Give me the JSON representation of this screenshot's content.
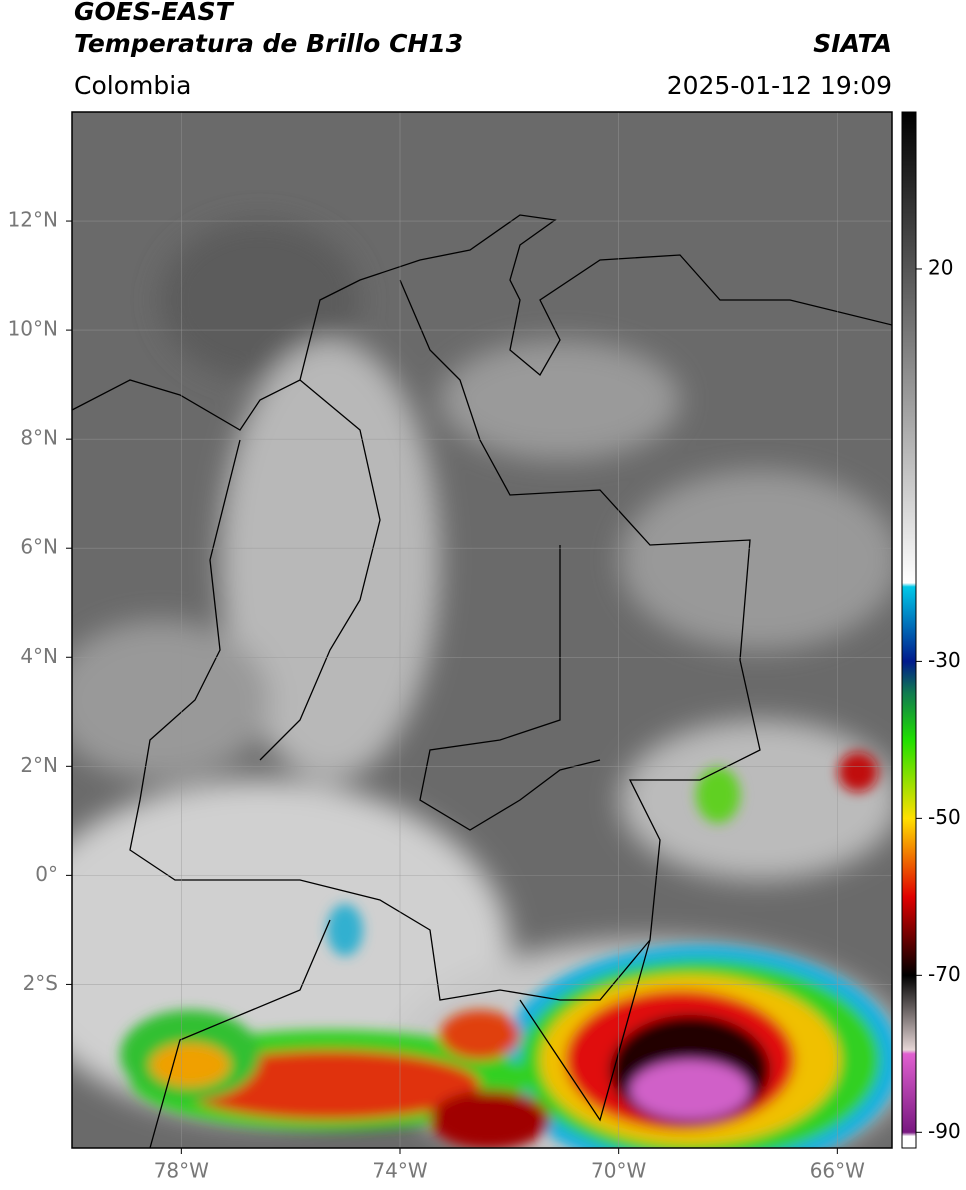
{
  "header": {
    "title": "GOES-EAST",
    "subtitle": "Temperatura de Brillo CH13",
    "source": "SIATA",
    "region": "Colombia",
    "datetime": "2025-01-12 19:09"
  },
  "map": {
    "lonlim": [
      -80,
      -65
    ],
    "latlim": [
      -5,
      14
    ],
    "lonticks": [
      {
        "value": -78,
        "label": "78°W"
      },
      {
        "value": -74,
        "label": "74°W"
      },
      {
        "value": -70,
        "label": "70°W"
      },
      {
        "value": -66,
        "label": "66°W"
      }
    ],
    "latticks": [
      {
        "value": 12,
        "label": "12°N"
      },
      {
        "value": 10,
        "label": "10°N"
      },
      {
        "value": 8,
        "label": "8°N"
      },
      {
        "value": 6,
        "label": "6°N"
      },
      {
        "value": 4,
        "label": "4°N"
      },
      {
        "value": 2,
        "label": "2°N"
      },
      {
        "value": 0,
        "label": "0°"
      },
      {
        "value": -2,
        "label": "2°S"
      }
    ],
    "grid": true
  },
  "colorbar": {
    "lim": [
      -92,
      40
    ],
    "ticks": [
      20,
      -30,
      -50,
      -70,
      -90
    ],
    "stops": [
      {
        "value": 40,
        "color": "#000000"
      },
      {
        "value": -20,
        "color": "#ffffff"
      },
      {
        "value": -20.5,
        "color": "#00c8e8"
      },
      {
        "value": -30,
        "color": "#001a8c"
      },
      {
        "value": -34,
        "color": "#107a50"
      },
      {
        "value": -40,
        "color": "#20e000"
      },
      {
        "value": -50,
        "color": "#ffe000"
      },
      {
        "value": -60,
        "color": "#e00000"
      },
      {
        "value": -70,
        "color": "#000000"
      },
      {
        "value": -79.5,
        "color": "#e6d6d6"
      },
      {
        "value": -80,
        "color": "#e060d0"
      },
      {
        "value": -90,
        "color": "#781880"
      },
      {
        "value": -90.5,
        "color": "#ffffff"
      },
      {
        "value": -92,
        "color": "#ffffff"
      }
    ]
  }
}
